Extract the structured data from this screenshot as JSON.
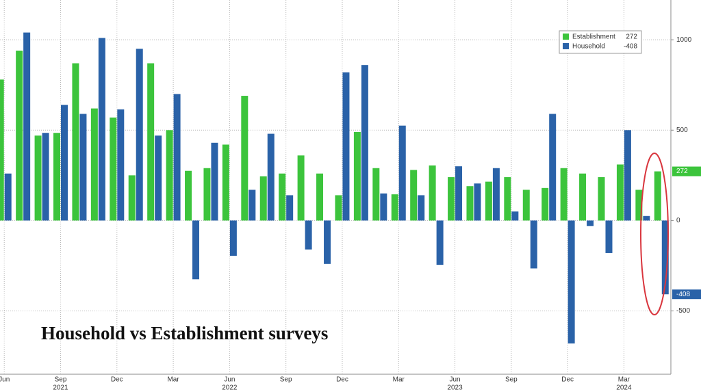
{
  "chart_data": {
    "type": "bar",
    "annotation": "Household vs Establishment surveys",
    "categories": [
      "Jun",
      null,
      null,
      "Sep",
      null,
      null,
      "Dec",
      null,
      null,
      "Mar",
      null,
      null,
      "Jun",
      null,
      null,
      "Sep",
      null,
      null,
      "Dec",
      null,
      null,
      "Mar",
      null,
      null,
      "Jun",
      null,
      null,
      "Sep",
      null,
      null,
      "Dec",
      null,
      null,
      "Mar",
      null,
      null
    ],
    "category_years": [
      null,
      null,
      null,
      "2021",
      null,
      null,
      null,
      null,
      null,
      null,
      null,
      null,
      "2022",
      null,
      null,
      null,
      null,
      null,
      null,
      null,
      null,
      null,
      null,
      null,
      "2023",
      null,
      null,
      null,
      null,
      null,
      null,
      null,
      null,
      "2024",
      null,
      null
    ],
    "series": [
      {
        "name": "Establishment",
        "color": "#3cc43c",
        "values": [
          780,
          940,
          470,
          485,
          870,
          620,
          570,
          250,
          870,
          500,
          275,
          290,
          420,
          690,
          245,
          260,
          360,
          260,
          140,
          490,
          290,
          145,
          280,
          305,
          240,
          190,
          215,
          240,
          170,
          180,
          290,
          260,
          240,
          310,
          170,
          272
        ]
      },
      {
        "name": "Household",
        "color": "#2a62a8",
        "values": [
          260,
          1040,
          485,
          640,
          590,
          1010,
          615,
          950,
          470,
          700,
          -325,
          430,
          -195,
          170,
          480,
          140,
          -160,
          -240,
          820,
          860,
          150,
          525,
          140,
          -245,
          300,
          205,
          290,
          50,
          -265,
          590,
          -680,
          -30,
          -180,
          500,
          25,
          -408
        ]
      }
    ],
    "ylim": [
      -850,
      1220
    ],
    "yticks": [
      -500,
      0,
      500,
      1000
    ],
    "grid": true
  }
}
